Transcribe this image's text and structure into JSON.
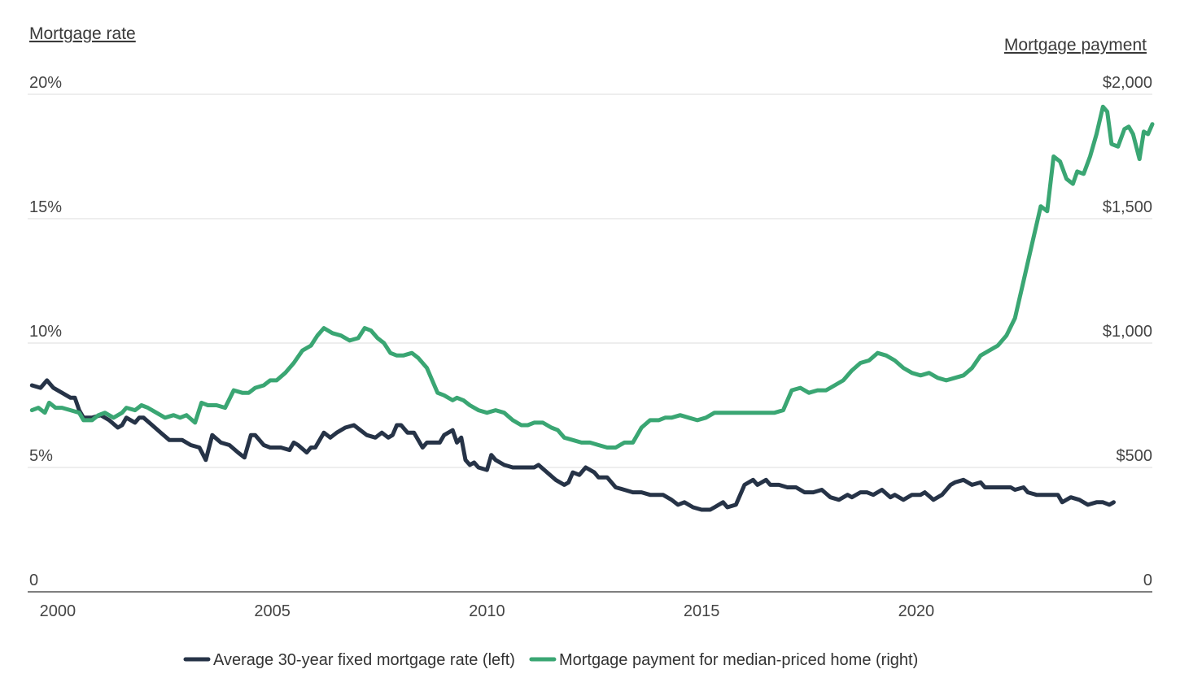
{
  "chart_data": {
    "type": "line",
    "left_axis": {
      "title": "Mortgage rate",
      "ylim": [
        0,
        20
      ],
      "ticks": [
        0,
        5,
        10,
        15,
        20
      ],
      "tick_labels": [
        "0",
        "5%",
        "10%",
        "15%",
        "20%"
      ]
    },
    "right_axis": {
      "title": "Mortgage payment",
      "ylim": [
        0,
        2000
      ],
      "ticks": [
        0,
        500,
        1000,
        1500,
        2000
      ],
      "tick_labels": [
        "0",
        "$500",
        "$1,000",
        "$1,500",
        "$2,000"
      ]
    },
    "x_axis": {
      "xlim": [
        1999.3,
        2025.5
      ],
      "ticks": [
        2000,
        2005,
        2010,
        2015,
        2020
      ],
      "tick_labels": [
        "2000",
        "2005",
        "2010",
        "2015",
        "2020"
      ]
    },
    "grid": true,
    "legend_position": "bottom",
    "series": [
      {
        "name": "Average 30-year fixed mortgage rate (left)",
        "axis": "left",
        "color": "#263347",
        "points": [
          [
            1999.4,
            8.3
          ],
          [
            1999.6,
            8.2
          ],
          [
            1999.75,
            8.5
          ],
          [
            1999.9,
            8.2
          ],
          [
            2000.1,
            8.0
          ],
          [
            2000.3,
            7.8
          ],
          [
            2000.4,
            7.8
          ],
          [
            2000.5,
            7.3
          ],
          [
            2000.6,
            7.0
          ],
          [
            2000.8,
            7.0
          ],
          [
            2001.0,
            7.1
          ],
          [
            2001.2,
            6.9
          ],
          [
            2001.4,
            6.6
          ],
          [
            2001.5,
            6.7
          ],
          [
            2001.6,
            7.0
          ],
          [
            2001.8,
            6.8
          ],
          [
            2001.9,
            7.0
          ],
          [
            2002.0,
            7.0
          ],
          [
            2002.2,
            6.7
          ],
          [
            2002.4,
            6.4
          ],
          [
            2002.6,
            6.1
          ],
          [
            2002.8,
            6.1
          ],
          [
            2002.9,
            6.1
          ],
          [
            2003.1,
            5.9
          ],
          [
            2003.3,
            5.8
          ],
          [
            2003.45,
            5.3
          ],
          [
            2003.6,
            6.3
          ],
          [
            2003.8,
            6.0
          ],
          [
            2004.0,
            5.9
          ],
          [
            2004.2,
            5.6
          ],
          [
            2004.35,
            5.4
          ],
          [
            2004.5,
            6.3
          ],
          [
            2004.6,
            6.3
          ],
          [
            2004.8,
            5.9
          ],
          [
            2004.95,
            5.8
          ],
          [
            2005.2,
            5.8
          ],
          [
            2005.4,
            5.7
          ],
          [
            2005.5,
            6.0
          ],
          [
            2005.6,
            5.9
          ],
          [
            2005.8,
            5.6
          ],
          [
            2005.9,
            5.8
          ],
          [
            2006.0,
            5.8
          ],
          [
            2006.2,
            6.4
          ],
          [
            2006.35,
            6.2
          ],
          [
            2006.5,
            6.4
          ],
          [
            2006.7,
            6.6
          ],
          [
            2006.9,
            6.7
          ],
          [
            2007.05,
            6.5
          ],
          [
            2007.2,
            6.3
          ],
          [
            2007.4,
            6.2
          ],
          [
            2007.55,
            6.4
          ],
          [
            2007.7,
            6.2
          ],
          [
            2007.8,
            6.3
          ],
          [
            2007.9,
            6.7
          ],
          [
            2008.0,
            6.7
          ],
          [
            2008.15,
            6.4
          ],
          [
            2008.3,
            6.4
          ],
          [
            2008.5,
            5.8
          ],
          [
            2008.6,
            6.0
          ],
          [
            2008.9,
            6.0
          ],
          [
            2009.0,
            6.3
          ],
          [
            2009.2,
            6.5
          ],
          [
            2009.3,
            6.0
          ],
          [
            2009.4,
            6.2
          ],
          [
            2009.5,
            5.3
          ],
          [
            2009.6,
            5.1
          ],
          [
            2009.7,
            5.2
          ],
          [
            2009.8,
            5.0
          ],
          [
            2010.0,
            4.9
          ],
          [
            2010.1,
            5.5
          ],
          [
            2010.2,
            5.3
          ],
          [
            2010.4,
            5.1
          ],
          [
            2010.6,
            5.0
          ],
          [
            2010.8,
            5.0
          ],
          [
            2010.95,
            5.0
          ],
          [
            2011.1,
            5.0
          ],
          [
            2011.2,
            5.1
          ],
          [
            2011.4,
            4.8
          ],
          [
            2011.6,
            4.5
          ],
          [
            2011.8,
            4.3
          ],
          [
            2011.9,
            4.4
          ],
          [
            2012.0,
            4.8
          ],
          [
            2012.15,
            4.7
          ],
          [
            2012.3,
            5.0
          ],
          [
            2012.5,
            4.8
          ],
          [
            2012.6,
            4.6
          ],
          [
            2012.8,
            4.6
          ],
          [
            2013.0,
            4.2
          ],
          [
            2013.2,
            4.1
          ],
          [
            2013.4,
            4.0
          ],
          [
            2013.6,
            4.0
          ],
          [
            2013.8,
            3.9
          ],
          [
            2014.1,
            3.9
          ],
          [
            2014.3,
            3.7
          ],
          [
            2014.45,
            3.5
          ],
          [
            2014.6,
            3.6
          ],
          [
            2014.8,
            3.4
          ],
          [
            2015.0,
            3.3
          ],
          [
            2015.2,
            3.3
          ],
          [
            2015.3,
            3.4
          ],
          [
            2015.5,
            3.6
          ],
          [
            2015.6,
            3.4
          ],
          [
            2015.8,
            3.5
          ],
          [
            2016.0,
            4.3
          ],
          [
            2016.2,
            4.5
          ],
          [
            2016.3,
            4.3
          ],
          [
            2016.5,
            4.5
          ],
          [
            2016.6,
            4.3
          ],
          [
            2016.8,
            4.3
          ],
          [
            2017.0,
            4.2
          ],
          [
            2017.2,
            4.2
          ],
          [
            2017.4,
            4.0
          ],
          [
            2017.6,
            4.0
          ],
          [
            2017.8,
            4.1
          ],
          [
            2018.0,
            3.8
          ],
          [
            2018.2,
            3.7
          ],
          [
            2018.4,
            3.9
          ],
          [
            2018.5,
            3.8
          ],
          [
            2018.7,
            4.0
          ],
          [
            2018.85,
            4.0
          ],
          [
            2019.0,
            3.9
          ],
          [
            2019.2,
            4.1
          ],
          [
            2019.4,
            3.8
          ],
          [
            2019.5,
            3.9
          ],
          [
            2019.7,
            3.7
          ],
          [
            2019.9,
            3.9
          ],
          [
            2020.1,
            3.9
          ],
          [
            2020.2,
            4.0
          ],
          [
            2020.4,
            3.7
          ],
          [
            2020.5,
            3.8
          ],
          [
            2020.6,
            3.9
          ],
          [
            2020.8,
            4.3
          ],
          [
            2020.9,
            4.4
          ],
          [
            2021.1,
            4.5
          ],
          [
            2021.3,
            4.3
          ],
          [
            2021.5,
            4.4
          ],
          [
            2021.6,
            4.2
          ],
          [
            2021.8,
            4.2
          ],
          [
            2022.0,
            4.2
          ],
          [
            2022.2,
            4.2
          ],
          [
            2022.3,
            4.1
          ],
          [
            2022.5,
            4.2
          ],
          [
            2022.6,
            4.0
          ],
          [
            2022.8,
            3.9
          ],
          [
            2023.0,
            3.9
          ],
          [
            2023.3,
            3.9
          ],
          [
            2023.4,
            3.6
          ],
          [
            2023.6,
            3.8
          ],
          [
            2023.8,
            3.7
          ],
          [
            2024.0,
            3.5
          ],
          [
            2024.2,
            3.6
          ],
          [
            2024.35,
            3.6
          ],
          [
            2024.5,
            3.5
          ],
          [
            2024.6,
            3.6
          ]
        ]
      },
      {
        "name": "Mortgage payment for median-priced home (right)",
        "axis": "right",
        "color": "#3aa673",
        "points": [
          [
            1999.4,
            730
          ],
          [
            1999.55,
            740
          ],
          [
            1999.7,
            720
          ],
          [
            1999.8,
            760
          ],
          [
            1999.95,
            740
          ],
          [
            2000.1,
            740
          ],
          [
            2000.3,
            730
          ],
          [
            2000.5,
            720
          ],
          [
            2000.6,
            690
          ],
          [
            2000.8,
            690
          ],
          [
            2000.95,
            710
          ],
          [
            2001.1,
            720
          ],
          [
            2001.3,
            700
          ],
          [
            2001.5,
            720
          ],
          [
            2001.6,
            740
          ],
          [
            2001.8,
            730
          ],
          [
            2001.95,
            750
          ],
          [
            2002.1,
            740
          ],
          [
            2002.3,
            720
          ],
          [
            2002.5,
            700
          ],
          [
            2002.7,
            710
          ],
          [
            2002.85,
            700
          ],
          [
            2003.0,
            710
          ],
          [
            2003.2,
            680
          ],
          [
            2003.35,
            760
          ],
          [
            2003.5,
            750
          ],
          [
            2003.7,
            750
          ],
          [
            2003.9,
            740
          ],
          [
            2004.1,
            810
          ],
          [
            2004.3,
            800
          ],
          [
            2004.45,
            800
          ],
          [
            2004.6,
            820
          ],
          [
            2004.8,
            830
          ],
          [
            2004.95,
            850
          ],
          [
            2005.1,
            850
          ],
          [
            2005.3,
            880
          ],
          [
            2005.5,
            920
          ],
          [
            2005.7,
            970
          ],
          [
            2005.9,
            990
          ],
          [
            2006.05,
            1030
          ],
          [
            2006.2,
            1060
          ],
          [
            2006.4,
            1040
          ],
          [
            2006.6,
            1030
          ],
          [
            2006.8,
            1010
          ],
          [
            2007.0,
            1020
          ],
          [
            2007.15,
            1060
          ],
          [
            2007.3,
            1050
          ],
          [
            2007.45,
            1020
          ],
          [
            2007.6,
            1000
          ],
          [
            2007.75,
            960
          ],
          [
            2007.9,
            950
          ],
          [
            2008.05,
            950
          ],
          [
            2008.25,
            960
          ],
          [
            2008.4,
            940
          ],
          [
            2008.6,
            900
          ],
          [
            2008.7,
            860
          ],
          [
            2008.85,
            800
          ],
          [
            2009.0,
            790
          ],
          [
            2009.2,
            770
          ],
          [
            2009.3,
            780
          ],
          [
            2009.45,
            770
          ],
          [
            2009.6,
            750
          ],
          [
            2009.8,
            730
          ],
          [
            2010.0,
            720
          ],
          [
            2010.2,
            730
          ],
          [
            2010.4,
            720
          ],
          [
            2010.6,
            690
          ],
          [
            2010.8,
            670
          ],
          [
            2010.95,
            670
          ],
          [
            2011.1,
            680
          ],
          [
            2011.3,
            680
          ],
          [
            2011.5,
            660
          ],
          [
            2011.65,
            650
          ],
          [
            2011.8,
            620
          ],
          [
            2012.0,
            610
          ],
          [
            2012.2,
            600
          ],
          [
            2012.4,
            600
          ],
          [
            2012.6,
            590
          ],
          [
            2012.8,
            580
          ],
          [
            2013.0,
            580
          ],
          [
            2013.2,
            600
          ],
          [
            2013.4,
            600
          ],
          [
            2013.6,
            660
          ],
          [
            2013.8,
            690
          ],
          [
            2014.0,
            690
          ],
          [
            2014.15,
            700
          ],
          [
            2014.3,
            700
          ],
          [
            2014.5,
            710
          ],
          [
            2014.7,
            700
          ],
          [
            2014.9,
            690
          ],
          [
            2015.1,
            700
          ],
          [
            2015.3,
            720
          ],
          [
            2015.5,
            720
          ],
          [
            2015.7,
            720
          ],
          [
            2015.9,
            720
          ],
          [
            2016.1,
            720
          ],
          [
            2016.3,
            720
          ],
          [
            2016.5,
            720
          ],
          [
            2016.7,
            720
          ],
          [
            2016.9,
            730
          ],
          [
            2017.1,
            810
          ],
          [
            2017.3,
            820
          ],
          [
            2017.5,
            800
          ],
          [
            2017.7,
            810
          ],
          [
            2017.9,
            810
          ],
          [
            2018.1,
            830
          ],
          [
            2018.3,
            850
          ],
          [
            2018.5,
            890
          ],
          [
            2018.7,
            920
          ],
          [
            2018.9,
            930
          ],
          [
            2019.1,
            960
          ],
          [
            2019.3,
            950
          ],
          [
            2019.5,
            930
          ],
          [
            2019.7,
            900
          ],
          [
            2019.9,
            880
          ],
          [
            2020.1,
            870
          ],
          [
            2020.3,
            880
          ],
          [
            2020.5,
            860
          ],
          [
            2020.7,
            850
          ],
          [
            2020.9,
            860
          ],
          [
            2021.1,
            870
          ],
          [
            2021.3,
            900
          ],
          [
            2021.5,
            950
          ],
          [
            2021.7,
            970
          ],
          [
            2021.9,
            990
          ],
          [
            2022.1,
            1030
          ],
          [
            2022.3,
            1100
          ],
          [
            2022.5,
            1250
          ],
          [
            2022.7,
            1400
          ],
          [
            2022.9,
            1550
          ],
          [
            2023.05,
            1530
          ],
          [
            2023.2,
            1750
          ],
          [
            2023.35,
            1730
          ],
          [
            2023.5,
            1660
          ],
          [
            2023.65,
            1640
          ],
          [
            2023.75,
            1690
          ],
          [
            2023.9,
            1680
          ],
          [
            2024.05,
            1750
          ],
          [
            2024.2,
            1840
          ],
          [
            2024.35,
            1950
          ],
          [
            2024.45,
            1930
          ],
          [
            2024.55,
            1800
          ],
          [
            2024.7,
            1790
          ],
          [
            2024.85,
            1860
          ],
          [
            2024.95,
            1870
          ],
          [
            2025.05,
            1840
          ],
          [
            2025.2,
            1740
          ],
          [
            2025.3,
            1850
          ],
          [
            2025.4,
            1840
          ],
          [
            2025.5,
            1880
          ]
        ]
      }
    ]
  }
}
